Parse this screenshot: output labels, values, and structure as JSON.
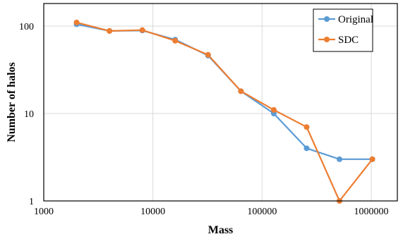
{
  "chart_data": {
    "type": "line",
    "x_scale": "log",
    "y_scale": "log",
    "xlabel": "Mass",
    "ylabel": "Number of halos",
    "xlim": [
      1000,
      1000000
    ],
    "ylim": [
      1,
      100
    ],
    "x_ticks": [
      {
        "value": 1000,
        "label": "1000"
      },
      {
        "value": 10000,
        "label": "10000"
      },
      {
        "value": 100000,
        "label": "100000"
      },
      {
        "value": 1000000,
        "label": "1000000"
      }
    ],
    "y_ticks": [
      {
        "value": 1,
        "label": "1"
      },
      {
        "value": 10,
        "label": "10"
      },
      {
        "value": 100,
        "label": "100"
      }
    ],
    "grid": true,
    "legend_position": "top-right",
    "x": [
      2000,
      4000,
      8000,
      16000,
      32000,
      64000,
      128000,
      256000,
      512000,
      1024000
    ],
    "series": [
      {
        "name": "Original",
        "color": "#5b9bd5",
        "values": [
          105,
          88,
          89,
          70,
          46,
          18,
          10,
          4,
          3,
          3
        ]
      },
      {
        "name": "SDC",
        "color": "#ed7d31",
        "values": [
          110,
          88,
          90,
          68,
          47,
          18,
          11,
          7,
          1,
          3
        ]
      }
    ]
  }
}
